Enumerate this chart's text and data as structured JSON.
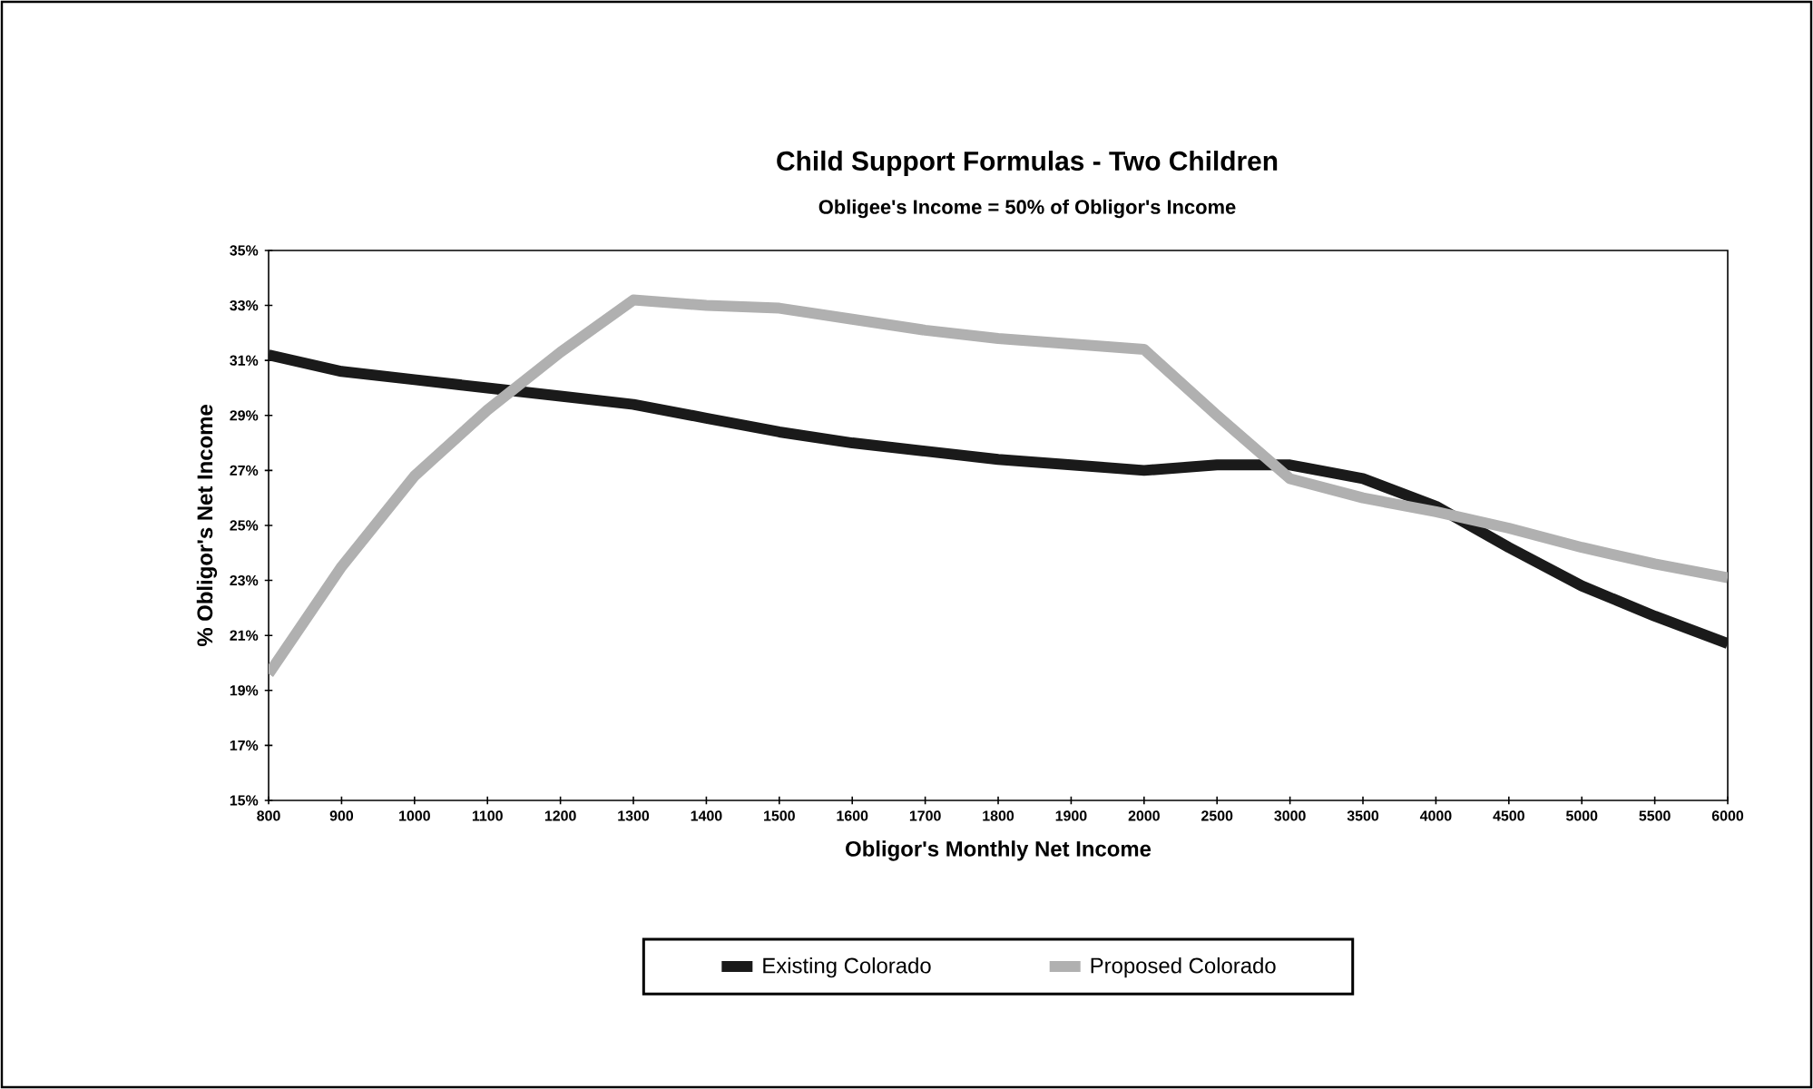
{
  "chart_data": {
    "type": "line",
    "title": "Child Support Formulas - Two Children",
    "subtitle": "Obligee's Income = 50% of Obligor's Income",
    "xlabel": "Obligor's Monthly Net Income",
    "ylabel": "% Obligor's Net Income",
    "categories": [
      "800",
      "900",
      "1000",
      "1100",
      "1200",
      "1300",
      "1400",
      "1500",
      "1600",
      "1700",
      "1800",
      "1900",
      "2000",
      "2500",
      "3000",
      "3500",
      "4000",
      "4500",
      "5000",
      "5500",
      "6000"
    ],
    "series": [
      {
        "name": "Existing Colorado",
        "color": "#1a1a1a",
        "values": [
          31.2,
          30.6,
          30.3,
          30.0,
          29.7,
          29.4,
          28.9,
          28.4,
          28.0,
          27.7,
          27.4,
          27.2,
          27.0,
          27.2,
          27.2,
          26.7,
          25.7,
          24.2,
          22.8,
          21.7,
          20.7
        ]
      },
      {
        "name": "Proposed Colorado",
        "color": "#b0b0b0",
        "values": [
          19.6,
          23.5,
          26.8,
          29.2,
          31.3,
          33.2,
          33.0,
          32.9,
          32.5,
          32.1,
          31.8,
          31.6,
          31.4,
          29.0,
          26.7,
          26.0,
          25.5,
          24.9,
          24.2,
          23.6,
          23.1
        ]
      }
    ],
    "ylim": [
      15,
      35
    ],
    "yticks": [
      {
        "value": 15,
        "label": "15%"
      },
      {
        "value": 17,
        "label": "17%"
      },
      {
        "value": 19,
        "label": "19%"
      },
      {
        "value": 21,
        "label": "21%"
      },
      {
        "value": 23,
        "label": "23%"
      },
      {
        "value": 25,
        "label": "25%"
      },
      {
        "value": 27,
        "label": "27%"
      },
      {
        "value": 29,
        "label": "29%"
      },
      {
        "value": 31,
        "label": "31%"
      },
      {
        "value": 33,
        "label": "33%"
      },
      {
        "value": 35,
        "label": "35%"
      }
    ],
    "grid": false,
    "legend": "bottom",
    "marker": "none",
    "line_style": "solid"
  }
}
